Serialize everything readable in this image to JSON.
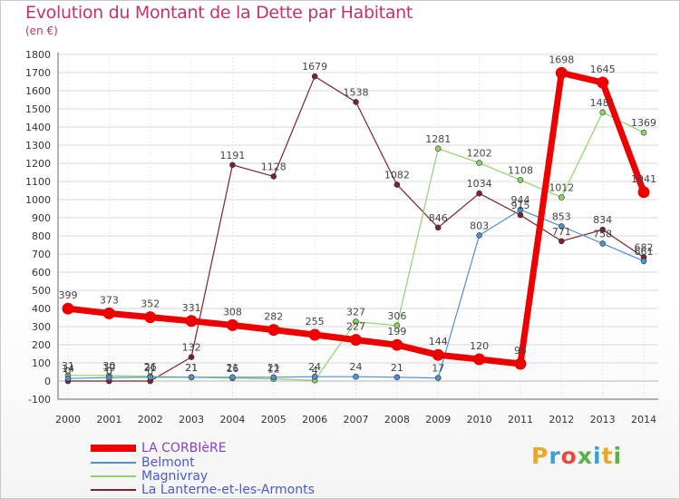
{
  "header": {
    "title": "Evolution du Montant de la Dette par Habitant",
    "unit": "(en €)"
  },
  "brand": {
    "logo_text": "Proxiti"
  },
  "colors": {
    "title": "#c0346a",
    "grid": "#d8d8d8",
    "axis": "#666666",
    "logo": [
      "#e8a82b",
      "#3b9fd8",
      "#e54b3c",
      "#58b24a",
      "#3b9fd8",
      "#e8a82b",
      "#58b24a"
    ]
  },
  "chart_data": {
    "type": "line",
    "title": "Evolution du Montant de la Dette par Habitant",
    "ylabel": "(en €)",
    "x": [
      "2000",
      "2001",
      "2002",
      "2003",
      "2004",
      "2005",
      "2006",
      "2007",
      "2008",
      "2009",
      "2010",
      "2011",
      "2012",
      "2013",
      "2014"
    ],
    "ylim": [
      -100,
      1800
    ],
    "yticks": [
      "-100",
      "0",
      "100",
      "200",
      "300",
      "400",
      "500",
      "600",
      "700",
      "800",
      "900",
      "1000",
      "1100",
      "1200",
      "1300",
      "1400",
      "1500",
      "1600",
      "1700",
      "1800"
    ],
    "grid": true,
    "legend_position": "bottom-left",
    "series": [
      {
        "name": "La Lanterne-et-les-Armonts",
        "color": "#7a2230",
        "width": 1.2,
        "values": [
          0,
          0,
          0,
          132,
          1191,
          1128,
          1679,
          1538,
          1082,
          846,
          1034,
          915,
          771,
          834,
          682
        ],
        "labels": [
          "0",
          "0",
          "0",
          "132",
          "1191",
          "1128",
          "1679",
          "1538",
          "1082",
          "846",
          "1034",
          "915",
          "771",
          "834",
          "682"
        ]
      },
      {
        "name": "Magnivray",
        "color": "#8fd46a",
        "width": 1.2,
        "values": [
          31,
          30,
          26,
          21,
          16,
          12,
          4,
          327,
          306,
          1281,
          1202,
          1108,
          1012,
          1481,
          1369
        ],
        "labels": [
          "31",
          "30",
          "26",
          "21",
          "16",
          "12",
          "4",
          "327",
          "306",
          "1281",
          "1202",
          "1108",
          "1012",
          "1481",
          "1369"
        ]
      },
      {
        "name": "Belmont",
        "color": "#4f90cf",
        "width": 1.2,
        "values": [
          14,
          19,
          21,
          21,
          21,
          21,
          24,
          24,
          21,
          17,
          803,
          944,
          853,
          758,
          661
        ],
        "labels": [
          "14",
          "19",
          "21",
          "21",
          "21",
          "21",
          "24",
          "24",
          "21",
          "17",
          "803",
          "944",
          "853",
          "758",
          "661"
        ]
      },
      {
        "name": "LA CORBIèRE",
        "color": "#ee0000",
        "width": 7,
        "values": [
          399,
          373,
          352,
          331,
          308,
          282,
          255,
          227,
          199,
          144,
          120,
          95,
          1698,
          1645,
          1041
        ],
        "labels": [
          "399",
          "373",
          "352",
          "331",
          "308",
          "282",
          "255",
          "227",
          "199",
          "144",
          "120",
          "95",
          "1698",
          "1645",
          "1041"
        ]
      }
    ],
    "legend": [
      "LA CORBIèRE",
      "Belmont",
      "Magnivray",
      "La Lanterne-et-les-Armonts"
    ]
  }
}
